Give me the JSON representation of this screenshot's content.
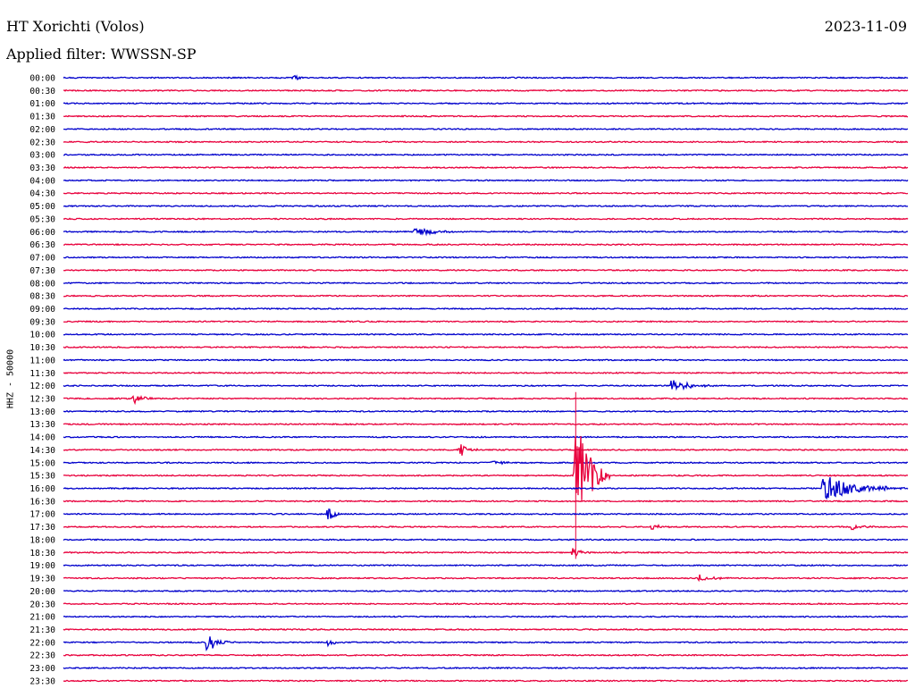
{
  "header": {
    "station": "HT Xorichti (Volos)",
    "date": "2023-11-09",
    "filter_prefix": "Applied filter:",
    "filter_name": "WWSSN-SP"
  },
  "channel_label": "HHZ - 50000",
  "colors": {
    "trace_a": "#0000cc",
    "trace_b": "#e8003c",
    "background": "#ffffff",
    "text": "#000000"
  },
  "chart_data": {
    "type": "line",
    "title": "HT Xorichti (Volos)",
    "subtitle": "Applied filter: WWSSN-SP",
    "ylabel": "HHZ - 50000",
    "xlabel": "",
    "x_unit": "minutes within trace row",
    "x_range": [
      0,
      30
    ],
    "grid": false,
    "legend": "none",
    "row_labels": [
      "00:00",
      "00:30",
      "01:00",
      "01:30",
      "02:00",
      "02:30",
      "03:00",
      "03:30",
      "04:00",
      "04:30",
      "05:00",
      "05:30",
      "06:00",
      "06:30",
      "07:00",
      "07:30",
      "08:00",
      "08:30",
      "09:00",
      "09:30",
      "10:00",
      "10:30",
      "11:00",
      "11:30",
      "12:00",
      "12:30",
      "13:00",
      "13:30",
      "14:00",
      "14:30",
      "15:00",
      "15:30",
      "16:00",
      "16:30",
      "17:00",
      "17:30",
      "18:00",
      "18:30",
      "19:00",
      "19:30",
      "20:00",
      "20:30",
      "21:00",
      "21:30",
      "22:00",
      "22:30",
      "23:00",
      "23:30"
    ],
    "events": [
      {
        "row": "00:00",
        "minute": 8.2,
        "amplitude": 0.5,
        "duration": 0.4
      },
      {
        "row": "06:00",
        "minute": 12.5,
        "amplitude": 0.5,
        "duration": 1.5
      },
      {
        "row": "12:00",
        "minute": 21.6,
        "amplitude": 0.7,
        "duration": 1.5
      },
      {
        "row": "12:30",
        "minute": 2.5,
        "amplitude": 0.5,
        "duration": 0.8
      },
      {
        "row": "14:30",
        "minute": 14.1,
        "amplitude": 0.6,
        "duration": 0.8
      },
      {
        "row": "15:00",
        "minute": 15.2,
        "amplitude": 0.3,
        "duration": 1.0
      },
      {
        "row": "15:30",
        "minute": 18.2,
        "amplitude": 6.5,
        "duration": 1.2
      },
      {
        "row": "16:00",
        "minute": 27.0,
        "amplitude": 1.3,
        "duration": 3.0
      },
      {
        "row": "17:00",
        "minute": 9.4,
        "amplitude": 0.9,
        "duration": 0.6
      },
      {
        "row": "17:30",
        "minute": 20.9,
        "amplitude": 0.3,
        "duration": 0.8
      },
      {
        "row": "17:30",
        "minute": 28.0,
        "amplitude": 0.3,
        "duration": 1.0
      },
      {
        "row": "18:30",
        "minute": 18.1,
        "amplitude": 0.6,
        "duration": 0.6
      },
      {
        "row": "19:30",
        "minute": 22.6,
        "amplitude": 0.35,
        "duration": 1.2
      },
      {
        "row": "22:00",
        "minute": 5.1,
        "amplitude": 1.0,
        "duration": 1.0
      },
      {
        "row": "22:00",
        "minute": 9.4,
        "amplitude": 0.4,
        "duration": 0.6
      }
    ]
  }
}
